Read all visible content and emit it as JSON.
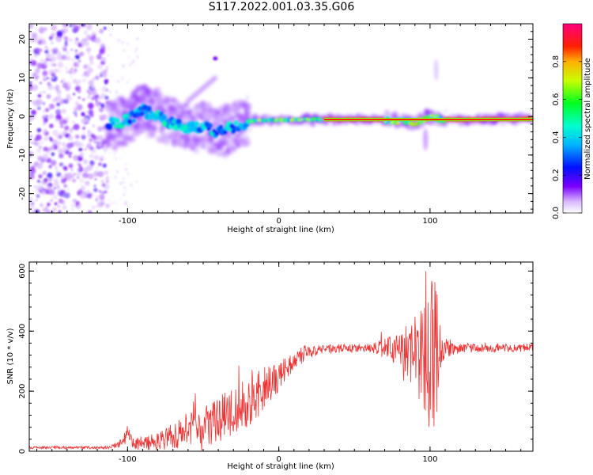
{
  "title": "S117.2022.001.03.35.G06",
  "colors": {
    "snr_line": "#ee3333",
    "frame": "#000000",
    "background": "#ffffff"
  },
  "chart_data": [
    {
      "type": "heatmap",
      "title": "S117.2022.001.03.35.G06",
      "xlabel": "Height of straight line (km)",
      "ylabel": "Frequency (Hz)",
      "xlim": [
        -165,
        168
      ],
      "ylim": [
        -25,
        24
      ],
      "xticks": [
        -100,
        0,
        100
      ],
      "yticks": [
        -20,
        -10,
        0,
        10,
        20
      ],
      "colorbar": {
        "label": "Normalized spectral amplitude",
        "range": [
          0.0,
          1.0
        ],
        "ticks": [
          0.0,
          0.2,
          0.4,
          0.6,
          0.8
        ],
        "colormap": "white-violet-blue-cyan-green-yellow-red-magenta"
      },
      "ridge": [
        {
          "x": -112,
          "y": -2
        },
        {
          "x": -100,
          "y": -1
        },
        {
          "x": -90,
          "y": 1.5
        },
        {
          "x": -80,
          "y": 0
        },
        {
          "x": -70,
          "y": -2
        },
        {
          "x": -60,
          "y": -3
        },
        {
          "x": -50,
          "y": -2.5
        },
        {
          "x": -40,
          "y": -4
        },
        {
          "x": -30,
          "y": -3
        },
        {
          "x": -20,
          "y": -1.2
        },
        {
          "x": -10,
          "y": -1
        },
        {
          "x": 0,
          "y": -1
        },
        {
          "x": 10,
          "y": -0.8
        },
        {
          "x": 30,
          "y": -0.8
        },
        {
          "x": 50,
          "y": -0.8
        },
        {
          "x": 70,
          "y": -0.8
        },
        {
          "x": 80,
          "y": -1.3
        },
        {
          "x": 90,
          "y": -1.6
        },
        {
          "x": 95,
          "y": -1
        },
        {
          "x": 100,
          "y": -0.2
        },
        {
          "x": 110,
          "y": -0.8
        },
        {
          "x": 130,
          "y": -0.8
        },
        {
          "x": 150,
          "y": -0.7
        },
        {
          "x": 168,
          "y": -0.6
        }
      ]
    },
    {
      "type": "line",
      "xlabel": "Height of straight line (km)",
      "ylabel": "SNR (10 * v/v)",
      "xlim": [
        -165,
        168
      ],
      "ylim": [
        0,
        630
      ],
      "xticks": [
        -100,
        0,
        100
      ],
      "yticks": [
        0,
        200,
        400,
        600
      ],
      "envelope": [
        {
          "x": -165,
          "base": 12,
          "amp": 4
        },
        {
          "x": -112,
          "base": 12,
          "amp": 5
        },
        {
          "x": -102,
          "base": 30,
          "amp": 20
        },
        {
          "x": -100,
          "base": 80,
          "amp": 15
        },
        {
          "x": -97,
          "base": 25,
          "amp": 20
        },
        {
          "x": -80,
          "base": 30,
          "amp": 30
        },
        {
          "x": -60,
          "base": 70,
          "amp": 60
        },
        {
          "x": -40,
          "base": 100,
          "amp": 80
        },
        {
          "x": -20,
          "base": 160,
          "amp": 90
        },
        {
          "x": -10,
          "base": 210,
          "amp": 70
        },
        {
          "x": 0,
          "base": 250,
          "amp": 50
        },
        {
          "x": 10,
          "base": 300,
          "amp": 30
        },
        {
          "x": 20,
          "base": 330,
          "amp": 20
        },
        {
          "x": 30,
          "base": 340,
          "amp": 15
        },
        {
          "x": 60,
          "base": 345,
          "amp": 15
        },
        {
          "x": 80,
          "base": 340,
          "amp": 60
        },
        {
          "x": 90,
          "base": 330,
          "amp": 120
        },
        {
          "x": 97,
          "base": 300,
          "amp": 190
        },
        {
          "x": 101,
          "base": 300,
          "amp": 290
        },
        {
          "x": 104,
          "base": 320,
          "amp": 250
        },
        {
          "x": 108,
          "base": 340,
          "amp": 40
        },
        {
          "x": 120,
          "base": 343,
          "amp": 14
        },
        {
          "x": 168,
          "base": 345,
          "amp": 14
        }
      ]
    }
  ]
}
